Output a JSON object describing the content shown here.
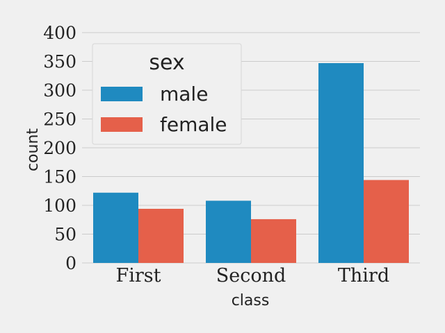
{
  "chart_data": {
    "type": "bar",
    "categories": [
      "First",
      "Second",
      "Third"
    ],
    "series": [
      {
        "name": "male",
        "values": [
          122,
          108,
          347
        ],
        "color": "#1f8ac0"
      },
      {
        "name": "female",
        "values": [
          94,
          76,
          144
        ],
        "color": "#e5604a"
      }
    ],
    "xlabel": "class",
    "ylabel": "count",
    "ylim": [
      0,
      400
    ],
    "yticks": [
      0,
      50,
      100,
      150,
      200,
      250,
      300,
      350,
      400
    ],
    "grid": true,
    "legend": {
      "title": "sex",
      "placement": "top-left"
    },
    "background": "#f0f0f0",
    "grid_color": "#cbcbcb"
  }
}
